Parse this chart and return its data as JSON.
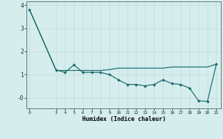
{
  "xlabel": "Humidex (Indice chaleur)",
  "background_color": "#d5eded",
  "grid_color": "#c8d8d8",
  "line_color": "#1a6b6b",
  "line1_x": [
    0,
    3,
    4,
    5,
    6,
    7,
    8,
    9,
    10,
    11,
    12,
    13,
    14,
    15,
    16,
    17,
    18,
    19,
    20,
    21
  ],
  "line1_y": [
    3.8,
    1.2,
    1.1,
    1.42,
    1.1,
    1.1,
    1.1,
    1.0,
    0.78,
    0.58,
    0.58,
    0.52,
    0.58,
    0.78,
    0.62,
    0.58,
    0.42,
    -0.12,
    -0.15,
    1.45
  ],
  "line2_x": [
    0,
    3,
    4,
    5,
    6,
    7,
    8,
    9,
    10,
    11,
    12,
    13,
    14,
    15,
    16,
    17,
    18,
    19,
    20,
    21
  ],
  "line2_y": [
    3.8,
    1.18,
    1.18,
    1.18,
    1.18,
    1.18,
    1.18,
    1.22,
    1.28,
    1.28,
    1.28,
    1.28,
    1.28,
    1.28,
    1.33,
    1.33,
    1.33,
    1.33,
    1.33,
    1.45
  ],
  "ytick_vals": [
    0,
    1,
    2,
    3,
    4
  ],
  "ytick_labels": [
    "-0",
    "1",
    "2",
    "3",
    "4"
  ],
  "ylim": [
    -0.45,
    4.15
  ],
  "xlim": [
    -0.3,
    21.5
  ],
  "xtick_vals": [
    0,
    3,
    4,
    5,
    6,
    7,
    8,
    9,
    10,
    11,
    12,
    13,
    14,
    15,
    16,
    17,
    18,
    19,
    20,
    21
  ],
  "xtick_labels": [
    "0",
    "3",
    "4",
    "5",
    "6",
    "7",
    "8",
    "9",
    "10",
    "11",
    "12",
    "13",
    "14",
    "15",
    "16",
    "17",
    "18",
    "19",
    "20",
    "21"
  ]
}
